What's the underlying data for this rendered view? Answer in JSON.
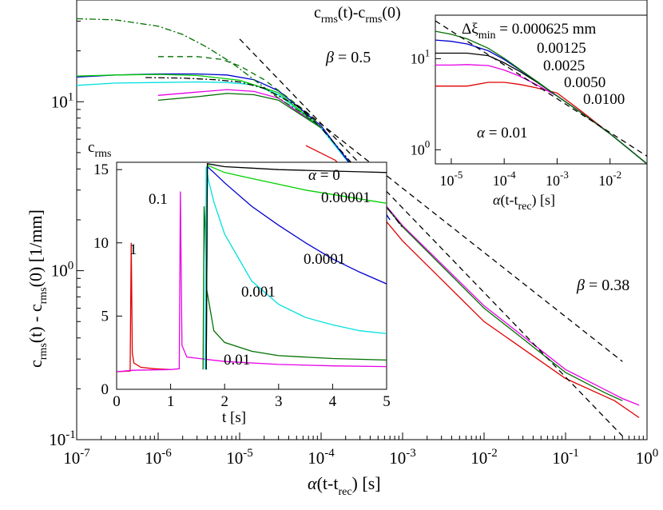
{
  "chart_data": [
    {
      "id": "main",
      "type": "line",
      "xscale": "log",
      "yscale": "log",
      "xlim": [
        1e-07,
        1
      ],
      "ylim": [
        0.1,
        40
      ],
      "xticks": [
        {
          "base": "10",
          "exp": "-7",
          "v": 1e-07
        },
        {
          "base": "10",
          "exp": "-6",
          "v": 1e-06
        },
        {
          "base": "10",
          "exp": "-5",
          "v": 1e-05
        },
        {
          "base": "10",
          "exp": "-4",
          "v": 0.0001
        },
        {
          "base": "10",
          "exp": "-3",
          "v": 0.001
        },
        {
          "base": "10",
          "exp": "-2",
          "v": 0.01
        },
        {
          "base": "10",
          "exp": "-1",
          "v": 0.1
        },
        {
          "base": "10",
          "exp": "0",
          "v": 1
        }
      ],
      "yticks": [
        {
          "base": "10",
          "exp": "-1",
          "v": 0.1
        },
        {
          "base": "10",
          "exp": "0",
          "v": 1
        },
        {
          "base": "10",
          "exp": "1",
          "v": 10
        }
      ],
      "xlabel": {
        "alpha": "α",
        "pre": "(t-t",
        "sub": "rec",
        "post": ")  [s]"
      },
      "ylabel": {
        "a": "c",
        "asub": "rms",
        "b": "(t) - c",
        "bsub": "rms",
        "c": "(0)  [1/mm]"
      },
      "series": [
        {
          "name": "1",
          "color": "#e00000",
          "style": "solid",
          "x": [
            6.5e-05,
            0.00015,
            0.001,
            0.01,
            0.1,
            0.4,
            0.8
          ],
          "y": [
            5.5,
            4.5,
            1.5,
            0.5,
            0.23,
            0.17,
            0.135
          ]
        },
        {
          "name": "0.1",
          "color": "#e800e8",
          "style": "solid",
          "x": [
            1e-06,
            3e-06,
            7e-06,
            1.5e-05,
            3e-05,
            0.0001,
            0.001,
            0.01,
            0.1,
            0.5,
            0.8
          ],
          "y": [
            10.9,
            11.4,
            11.8,
            11.5,
            10.5,
            7,
            1.85,
            0.62,
            0.26,
            0.175,
            0.16
          ]
        },
        {
          "name": "0.01",
          "color": "#007000",
          "style": "solid",
          "x": [
            1e-06,
            3e-06,
            7e-06,
            1.5e-05,
            3e-05,
            0.0001,
            0.001,
            0.01,
            0.1,
            0.3,
            0.5
          ],
          "y": [
            10.2,
            10.7,
            11.2,
            11,
            10.2,
            7,
            1.82,
            0.6,
            0.25,
            0.19,
            0.17
          ]
        },
        {
          "name": "0.001",
          "color": "#00e0e0",
          "style": "solid",
          "x": [
            1e-07,
            3e-07,
            1e-06,
            3e-06,
            7e-06,
            1.5e-05,
            3e-05,
            0.0001,
            0.0004,
            0.0007
          ],
          "y": [
            12.5,
            12.9,
            13,
            13.1,
            13,
            12.6,
            11,
            7,
            3,
            2
          ]
        },
        {
          "name": "0.0001",
          "color": "#0000d0",
          "style": "solid",
          "x": [
            1e-07,
            3e-07,
            1e-06,
            3e-06,
            7e-06,
            1.5e-05,
            3e-05,
            0.0001,
            0.0004,
            0.0007
          ],
          "y": [
            14,
            14.4,
            14.6,
            14.6,
            14.4,
            13.5,
            11.6,
            7.2,
            3,
            2
          ]
        },
        {
          "name": "0.00001",
          "color": "#00d000",
          "style": "solid",
          "x": [
            1e-07,
            3e-07,
            1e-06,
            3e-06,
            1e-05,
            3e-05,
            0.0001
          ],
          "y": [
            14.2,
            14.4,
            14.5,
            14.3,
            13.4,
            11.3,
            7
          ]
        },
        {
          "name": "0",
          "color": "#000000",
          "style": "dashdot",
          "x": [
            7e-07,
            2e-06,
            5e-06,
            1e-05,
            2e-05,
            5e-05,
            0.0001,
            0.0003,
            0.001
          ],
          "y": [
            13.9,
            13.8,
            13.5,
            13.1,
            12,
            9.5,
            7,
            3.8,
            1.8
          ]
        },
        {
          "name": "green dashdot",
          "color": "#007000",
          "style": "dashdot",
          "x": [
            1e-07,
            3e-07,
            1e-06,
            2e-06,
            4e-06,
            8e-06,
            1.5e-05,
            3e-05,
            6e-05,
            0.0001
          ],
          "y": [
            31,
            30.5,
            28,
            25,
            21,
            17,
            13.5,
            10.5,
            8.5,
            7
          ]
        },
        {
          "name": "green dashed",
          "color": "#007000",
          "style": "dashed",
          "x": [
            1e-06,
            3e-06,
            6e-06,
            1e-05,
            2e-05,
            4e-05,
            7e-05,
            0.0001
          ],
          "y": [
            18.5,
            18.5,
            17.8,
            16.3,
            13.5,
            10.5,
            8.5,
            7
          ]
        },
        {
          "name": "beta 0.5 fit",
          "color": "#000000",
          "style": "dashed",
          "x": [
            1e-05,
            0.5
          ],
          "y": [
            23.5,
            0.105
          ]
        },
        {
          "name": "beta 0.38 fit",
          "color": "#000000",
          "style": "dashed",
          "x": [
            5e-05,
            0.5
          ],
          "y": [
            9.6,
            0.29
          ]
        }
      ],
      "annotations": [
        {
          "kind": "sub2",
          "a": "c",
          "asub": "rms",
          "b": "(t)-c",
          "bsub": "rms",
          "c": "(0)"
        },
        {
          "kind": "beta",
          "sym": "β",
          "text": " = 0.5"
        },
        {
          "kind": "beta",
          "sym": "β",
          "text": " = 0.38"
        }
      ]
    },
    {
      "id": "inset_linear",
      "type": "line",
      "xscale": "linear",
      "yscale": "linear",
      "xlim": [
        0,
        5
      ],
      "ylim": [
        0,
        15.5
      ],
      "xticks": [
        "0",
        "1",
        "2",
        "3",
        "4",
        "5"
      ],
      "yticks": [
        "0",
        "5",
        "10",
        "15"
      ],
      "xlabel": "t  [s]",
      "ylabel": {
        "a": "c",
        "asub": "rms"
      },
      "series": [
        {
          "name": "1",
          "color": "#e00000",
          "x": [
            0,
            0.25,
            0.27,
            0.29,
            0.32,
            0.45,
            0.7,
            1.0
          ],
          "y": [
            1.2,
            1.25,
            10,
            2.5,
            1.8,
            1.5,
            1.4,
            1.35
          ]
        },
        {
          "name": "0.1",
          "color": "#e800e8",
          "x": [
            0,
            0.3,
            1.0,
            1.16,
            1.18,
            1.21,
            1.3,
            2.0,
            3.0,
            4.0,
            5.0
          ],
          "y": [
            1.2,
            1.3,
            1.35,
            1.4,
            13.5,
            3,
            2.2,
            1.9,
            1.7,
            1.6,
            1.55
          ]
        },
        {
          "name": "0.01",
          "color": "#007000",
          "x": [
            1.6,
            1.62,
            1.64,
            1.66,
            1.8,
            2.0,
            2.5,
            3.0,
            4.0,
            5.0
          ],
          "y": [
            1.35,
            12.5,
            11,
            7,
            4,
            3.2,
            2.6,
            2.3,
            2.1,
            2.0
          ]
        },
        {
          "name": "0.001",
          "color": "#00e0e0",
          "x": [
            1.64,
            1.66,
            1.7,
            1.8,
            2.0,
            2.5,
            3.0,
            3.5,
            4.0,
            4.5,
            5.0
          ],
          "y": [
            1.35,
            15.2,
            14.3,
            12.8,
            10.6,
            7.4,
            5.8,
            4.9,
            4.4,
            4.0,
            3.8
          ]
        },
        {
          "name": "0.0001",
          "color": "#0000d0",
          "x": [
            1.66,
            1.68,
            1.8,
            2.0,
            2.5,
            3.0,
            3.5,
            4.0,
            4.5,
            5.0
          ],
          "y": [
            1.35,
            15.2,
            14.8,
            14.1,
            12.5,
            11.2,
            10.0,
            8.9,
            8.0,
            7.2
          ]
        },
        {
          "name": "0.00001",
          "color": "#00d000",
          "x": [
            1.66,
            1.68,
            2.0,
            2.5,
            3.0,
            3.5,
            4.0,
            4.5,
            5.0
          ],
          "y": [
            1.35,
            15.3,
            14.8,
            14.4,
            14.0,
            13.6,
            13.3,
            13.0,
            12.7
          ]
        },
        {
          "name": "0",
          "color": "#000000",
          "x": [
            1.66,
            1.68,
            2.0,
            2.5,
            3.0,
            3.5,
            4.0,
            4.5,
            5.0
          ],
          "y": [
            1.35,
            15.4,
            15.2,
            15.1,
            15.0,
            14.95,
            14.9,
            14.85,
            14.8
          ]
        }
      ],
      "labels": [
        {
          "text": "1"
        },
        {
          "text": "0.1"
        },
        {
          "text": "0.01"
        },
        {
          "text": "0.001"
        },
        {
          "text": "0.0001"
        },
        {
          "text": "0.00001"
        },
        {
          "alpha": "α",
          "text": " = 0"
        }
      ]
    },
    {
      "id": "inset_loglog",
      "type": "line",
      "xscale": "log",
      "yscale": "log",
      "xlim": [
        5e-06,
        0.05
      ],
      "ylim": [
        0.7,
        30
      ],
      "xticks": [
        {
          "base": "10",
          "exp": "-5",
          "v": 1e-05
        },
        {
          "base": "10",
          "exp": "-4",
          "v": 0.0001
        },
        {
          "base": "10",
          "exp": "-3",
          "v": 0.001
        },
        {
          "base": "10",
          "exp": "-2",
          "v": 0.01
        }
      ],
      "yticks": [
        {
          "base": "10",
          "exp": "0",
          "v": 1
        },
        {
          "base": "10",
          "exp": "1",
          "v": 10
        }
      ],
      "xlabel": {
        "alpha": "α",
        "pre": "(t-t",
        "sub": "rec",
        "post": ")  [s]"
      },
      "series": [
        {
          "name": "0.0100",
          "color": "#e00000",
          "x": [
            5e-06,
            2e-05,
            5e-05,
            0.0001,
            0.0002,
            0.0004,
            0.001,
            0.003,
            0.01,
            0.05
          ],
          "y": [
            5,
            5,
            5.5,
            5.5,
            5.2,
            4.8,
            4.2,
            2.6,
            1.5,
            0.7
          ]
        },
        {
          "name": "0.0050",
          "color": "#e800e8",
          "x": [
            5e-06,
            1e-05,
            2e-05,
            5e-05,
            0.0001,
            0.0002,
            0.0004,
            0.001,
            0.003,
            0.01,
            0.05
          ],
          "y": [
            8.5,
            8.5,
            8.6,
            8.4,
            7.5,
            6.4,
            5.2,
            3.9,
            2.5,
            1.5,
            0.7
          ]
        },
        {
          "name": "0.0025",
          "color": "#000000",
          "x": [
            5e-06,
            2e-05,
            5e-05,
            0.0001,
            0.0002,
            0.0004,
            0.001,
            0.003,
            0.01,
            0.05
          ],
          "y": [
            11.5,
            11.5,
            10.8,
            9,
            7.2,
            5.6,
            3.9,
            2.5,
            1.5,
            0.7
          ]
        },
        {
          "name": "0.00125",
          "color": "#0000d0",
          "x": [
            5e-06,
            1e-05,
            2e-05,
            5e-05,
            0.0001,
            0.0002,
            0.0004,
            0.001,
            0.003,
            0.01,
            0.05
          ],
          "y": [
            16,
            15.5,
            14.5,
            12.2,
            9.8,
            7.5,
            5.7,
            3.9,
            2.5,
            1.5,
            0.7
          ]
        },
        {
          "name": "0.000625 mm",
          "color": "#007000",
          "x": [
            5e-06,
            1e-05,
            2e-05,
            5e-05,
            0.0001,
            0.0002,
            0.0004,
            0.001,
            0.003,
            0.01,
            0.05
          ],
          "y": [
            20,
            18.5,
            16.5,
            13,
            10.1,
            7.6,
            5.7,
            3.9,
            2.5,
            1.5,
            0.7
          ]
        },
        {
          "name": "fit",
          "color": "#000000",
          "style": "dashed",
          "x": [
            5e-06,
            0.05
          ],
          "y": [
            26,
            0.85
          ]
        }
      ],
      "labels": [
        {
          "delta": "Δξ",
          "sub": "min",
          "text": " = 0.000625 mm"
        },
        {
          "text": "0.00125"
        },
        {
          "text": "0.0025"
        },
        {
          "text": "0.0050"
        },
        {
          "text": "0.0100"
        },
        {
          "alpha": "α",
          "text": " = 0.01"
        }
      ]
    }
  ]
}
